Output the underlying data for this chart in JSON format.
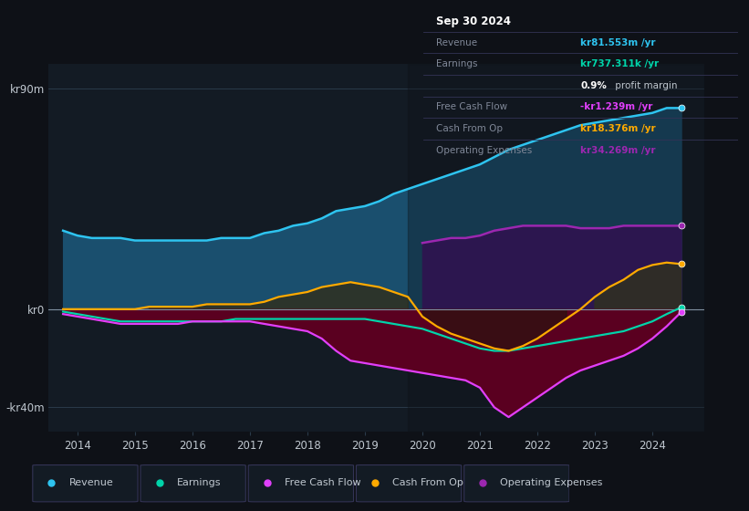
{
  "background_color": "#0e1117",
  "plot_bg_color": "#131b24",
  "years": [
    2013.75,
    2014.0,
    2014.25,
    2014.5,
    2014.75,
    2015.0,
    2015.25,
    2015.5,
    2015.75,
    2016.0,
    2016.25,
    2016.5,
    2016.75,
    2017.0,
    2017.25,
    2017.5,
    2017.75,
    2018.0,
    2018.25,
    2018.5,
    2018.75,
    2019.0,
    2019.25,
    2019.5,
    2019.75,
    2020.0,
    2020.25,
    2020.5,
    2020.75,
    2021.0,
    2021.25,
    2021.5,
    2021.75,
    2022.0,
    2022.25,
    2022.5,
    2022.75,
    2023.0,
    2023.25,
    2023.5,
    2023.75,
    2024.0,
    2024.25,
    2024.5
  ],
  "revenue": [
    32,
    30,
    29,
    29,
    29,
    28,
    28,
    28,
    28,
    28,
    28,
    29,
    29,
    29,
    31,
    32,
    34,
    35,
    37,
    40,
    41,
    42,
    44,
    47,
    49,
    51,
    53,
    55,
    57,
    59,
    62,
    65,
    67,
    69,
    71,
    73,
    75,
    76,
    77,
    78,
    79,
    80,
    82,
    82
  ],
  "earnings": [
    -1,
    -2,
    -3,
    -4,
    -5,
    -5,
    -5,
    -5,
    -5,
    -5,
    -5,
    -5,
    -4,
    -4,
    -4,
    -4,
    -4,
    -4,
    -4,
    -4,
    -4,
    -4,
    -5,
    -6,
    -7,
    -8,
    -10,
    -12,
    -14,
    -16,
    -17,
    -17,
    -16,
    -15,
    -14,
    -13,
    -12,
    -11,
    -10,
    -9,
    -7,
    -5,
    -2,
    0.7
  ],
  "free_cash_flow": [
    -2,
    -3,
    -4,
    -5,
    -6,
    -6,
    -6,
    -6,
    -6,
    -5,
    -5,
    -5,
    -5,
    -5,
    -6,
    -7,
    -8,
    -9,
    -12,
    -17,
    -21,
    -22,
    -23,
    -24,
    -25,
    -26,
    -27,
    -28,
    -29,
    -32,
    -40,
    -44,
    -40,
    -36,
    -32,
    -28,
    -25,
    -23,
    -21,
    -19,
    -16,
    -12,
    -7,
    -1.2
  ],
  "cash_from_op": [
    0,
    0,
    0,
    0,
    0,
    0,
    1,
    1,
    1,
    1,
    2,
    2,
    2,
    2,
    3,
    5,
    6,
    7,
    9,
    10,
    11,
    10,
    9,
    7,
    5,
    -3,
    -7,
    -10,
    -12,
    -14,
    -16,
    -17,
    -15,
    -12,
    -8,
    -4,
    0,
    5,
    9,
    12,
    16,
    18,
    19,
    18.4
  ],
  "operating_expenses": [
    0,
    0,
    0,
    0,
    0,
    0,
    0,
    0,
    0,
    0,
    0,
    0,
    0,
    0,
    0,
    0,
    0,
    0,
    0,
    0,
    0,
    0,
    0,
    0,
    0,
    27,
    28,
    29,
    29,
    30,
    32,
    33,
    34,
    34,
    34,
    34,
    33,
    33,
    33,
    34,
    34,
    34,
    34,
    34
  ],
  "ylim": [
    -50,
    100
  ],
  "ytick_vals": [
    -40,
    0,
    90
  ],
  "ytick_labels": [
    "-kr40m",
    "kr0",
    "kr90m"
  ],
  "xlim": [
    2013.5,
    2024.9
  ],
  "xticks": [
    2014,
    2015,
    2016,
    2017,
    2018,
    2019,
    2020,
    2021,
    2022,
    2023,
    2024
  ],
  "revenue_line_color": "#2ec4f0",
  "revenue_fill_color": "#1a4f6e",
  "earnings_line_color": "#00d4aa",
  "fcf_line_color": "#e040fb",
  "fcf_fill_color": "#5a0020",
  "cfo_line_color": "#ffaa00",
  "opex_line_color": "#9c27b0",
  "opex_fill_color": "#3d1a6e",
  "cfo_fill_above_color": "#2a2a1a",
  "grid_color": "#2a3a4a",
  "zero_line_color": "#8090a0",
  "opex_start_x": 2020.0,
  "overlay_start_x": 2019.75,
  "overlay_color": "#0e1117",
  "info_box_bg": "#000000",
  "info_box_border": "#333355",
  "info_title": "Sep 30 2024",
  "info_rows": [
    {
      "label": "Revenue",
      "value": "kr81.553m /yr",
      "value_color": "#2ec4f0",
      "bold": true
    },
    {
      "label": "Earnings",
      "value": "kr737.311k /yr",
      "value_color": "#00d4aa",
      "bold": true
    },
    {
      "label": "",
      "value": "0.9% profit margin",
      "value_color": "#ffffff",
      "bold": true,
      "mixed": true
    },
    {
      "label": "Free Cash Flow",
      "value": "-kr1.239m /yr",
      "value_color": "#e040fb",
      "bold": true
    },
    {
      "label": "Cash From Op",
      "value": "kr18.376m /yr",
      "value_color": "#ffaa00",
      "bold": true
    },
    {
      "label": "Operating Expenses",
      "value": "kr34.269m /yr",
      "value_color": "#9c27b0",
      "bold": true
    }
  ],
  "legend_items": [
    {
      "label": "Revenue",
      "color": "#2ec4f0"
    },
    {
      "label": "Earnings",
      "color": "#00d4aa"
    },
    {
      "label": "Free Cash Flow",
      "color": "#e040fb"
    },
    {
      "label": "Cash From Op",
      "color": "#ffaa00"
    },
    {
      "label": "Operating Expenses",
      "color": "#9c27b0"
    }
  ],
  "text_color": "#c0c8d0",
  "label_dim_color": "#808898"
}
